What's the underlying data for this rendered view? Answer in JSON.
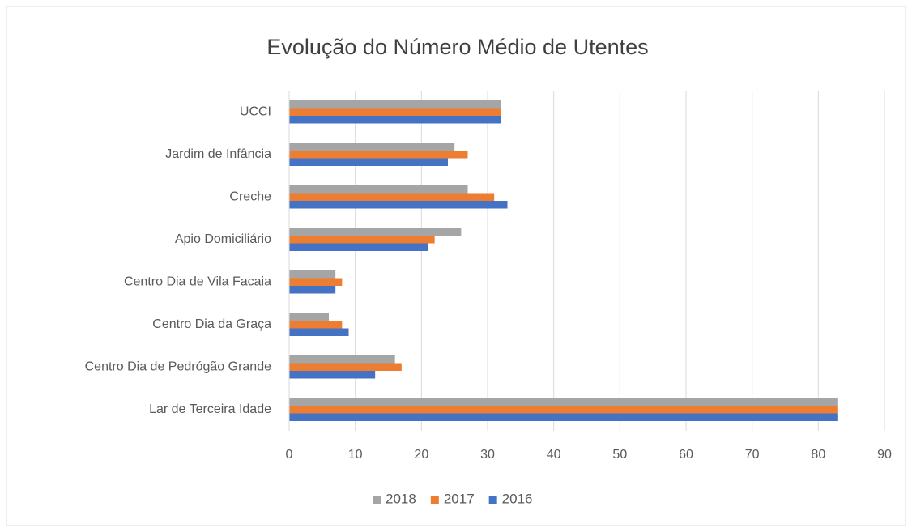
{
  "chart_data": {
    "type": "bar",
    "orientation": "horizontal",
    "title": "Evolução do Número Médio de Utentes",
    "categories": [
      "UCCI",
      "Jardim de Infância",
      "Creche",
      "Apio Domiciliário",
      "Centro Dia de Vila Facaia",
      "Centro Dia da Graça",
      "Centro Dia de Pedrógão Grande",
      "Lar de Terceira Idade"
    ],
    "series": [
      {
        "name": "2018",
        "color": "#a5a5a5",
        "values": [
          32,
          25,
          27,
          26,
          7,
          6,
          16,
          83
        ]
      },
      {
        "name": "2017",
        "color": "#ed7d31",
        "values": [
          32,
          27,
          31,
          22,
          8,
          8,
          17,
          83
        ]
      },
      {
        "name": "2016",
        "color": "#4472c4",
        "values": [
          32,
          24,
          33,
          21,
          7,
          9,
          13,
          83
        ]
      }
    ],
    "xlim": [
      0,
      90
    ],
    "xticks": [
      0,
      10,
      20,
      30,
      40,
      50,
      60,
      70,
      80,
      90
    ],
    "grid": true,
    "legend": "bottom"
  }
}
